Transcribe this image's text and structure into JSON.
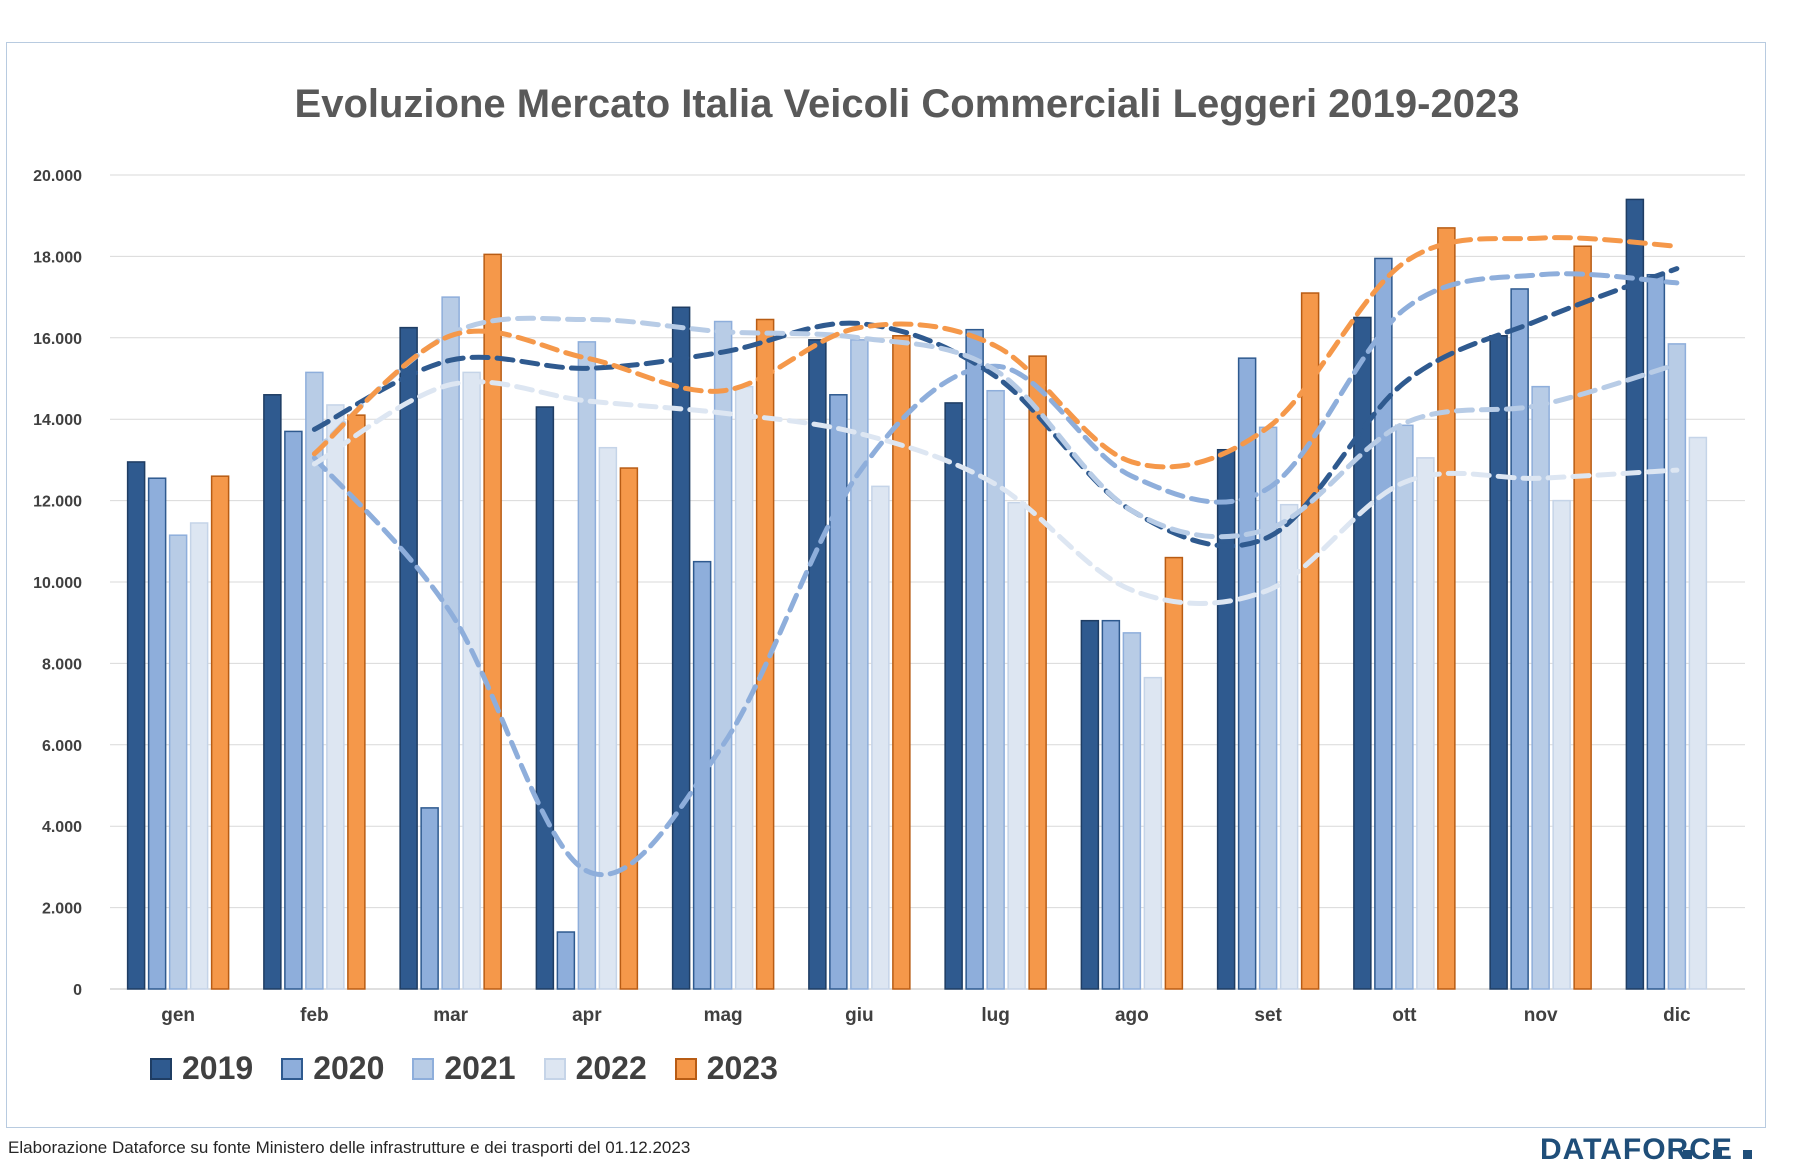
{
  "title": "Evoluzione Mercato Italia Veicoli Commerciali Leggeri 2019-2023",
  "source_note": "Elaborazione Dataforce su fonte Ministero delle infrastrutture e dei trasporti del 01.12.2023",
  "brand": "DATAFORCE",
  "chart_data": {
    "type": "bar",
    "title": "Evoluzione Mercato Italia Veicoli Commerciali Leggeri 2019-2023",
    "xlabel": "",
    "ylabel": "",
    "ylim": [
      0,
      20000
    ],
    "yticks": [
      0,
      2000,
      4000,
      6000,
      8000,
      10000,
      12000,
      14000,
      16000,
      18000,
      20000
    ],
    "ytick_labels": [
      "0",
      "2.000",
      "4.000",
      "6.000",
      "8.000",
      "10.000",
      "12.000",
      "14.000",
      "16.000",
      "18.000",
      "20.000"
    ],
    "grid": true,
    "legend_position": "bottom-left",
    "categories": [
      "gen",
      "feb",
      "mar",
      "apr",
      "mag",
      "giu",
      "lug",
      "ago",
      "set",
      "ott",
      "nov",
      "dic"
    ],
    "series": [
      {
        "name": "2019",
        "color": "#2f5a8f",
        "edge": "#1f3d63",
        "values": [
          12950,
          14600,
          16250,
          14300,
          16750,
          15950,
          14400,
          9050,
          13250,
          16500,
          16050,
          19400
        ]
      },
      {
        "name": "2020",
        "color": "#8eaedb",
        "edge": "#2f5a8f",
        "values": [
          12550,
          13700,
          4450,
          1400,
          10500,
          14600,
          16200,
          9050,
          15500,
          17950,
          17200,
          17550
        ]
      },
      {
        "name": "2021",
        "color": "#b8cce6",
        "edge": "#8eaedb",
        "values": [
          11150,
          15150,
          17000,
          15900,
          16400,
          15950,
          14700,
          8750,
          13800,
          13850,
          14800,
          15850
        ]
      },
      {
        "name": "2022",
        "color": "#dde6f2",
        "edge": "#c5d4e8",
        "values": [
          11450,
          14350,
          15150,
          13300,
          14800,
          12350,
          11950,
          7650,
          11900,
          13050,
          12000,
          13550
        ]
      },
      {
        "name": "2023",
        "color": "#f5984a",
        "edge": "#b85c14",
        "values": [
          12600,
          14100,
          18050,
          12800,
          16450,
          16050,
          15550,
          10600,
          17100,
          18700,
          18250,
          null
        ]
      }
    ],
    "trendlines": [
      {
        "series": "2019",
        "color": "#2f5a8f",
        "style": "dashed",
        "values": [
          null,
          13750,
          15450,
          15250,
          15650,
          16350,
          15050,
          11750,
          11100,
          14900,
          16450,
          17700
        ]
      },
      {
        "series": "2020",
        "color": "#8eaedb",
        "style": "dashed",
        "values": [
          null,
          13050,
          9250,
          2900,
          6000,
          12700,
          15300,
          12600,
          12300,
          16700,
          17550,
          17350
        ]
      },
      {
        "series": "2021",
        "color": "#b8cce6",
        "style": "dashed",
        "values": [
          null,
          13200,
          16100,
          16450,
          16150,
          16000,
          15200,
          11750,
          11300,
          13900,
          14350,
          15350
        ]
      },
      {
        "series": "2022",
        "color": "#dde6f2",
        "style": "dashed",
        "values": [
          null,
          12900,
          14850,
          14450,
          14150,
          13650,
          12400,
          9800,
          9800,
          12450,
          12550,
          12750
        ]
      },
      {
        "series": "2023",
        "color": "#f5984a",
        "style": "dashed",
        "values": [
          null,
          13150,
          16050,
          15500,
          14700,
          16250,
          15800,
          12950,
          13800,
          17850,
          18450,
          18250
        ]
      }
    ]
  }
}
